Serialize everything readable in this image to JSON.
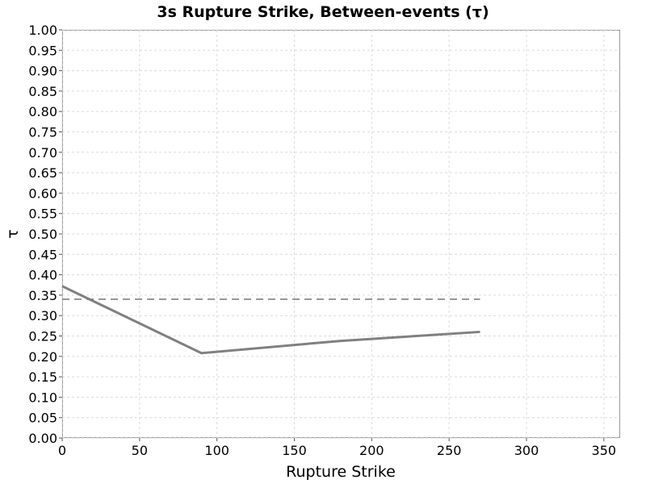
{
  "chart_data": {
    "type": "line",
    "title": "3s Rupture Strike, Between-events (τ)",
    "xlabel": "Rupture Strike",
    "ylabel": "τ",
    "xlim": [
      0,
      360
    ],
    "ylim": [
      0,
      1
    ],
    "x_ticks": [
      "0",
      "50",
      "100",
      "150",
      "200",
      "250",
      "300",
      "350"
    ],
    "x_tick_values": [
      0,
      50,
      100,
      150,
      200,
      250,
      300,
      350
    ],
    "y_ticks": [
      "0.00",
      "0.05",
      "0.10",
      "0.15",
      "0.20",
      "0.25",
      "0.30",
      "0.35",
      "0.40",
      "0.45",
      "0.50",
      "0.55",
      "0.60",
      "0.65",
      "0.70",
      "0.75",
      "0.80",
      "0.85",
      "0.90",
      "0.95",
      "1.00"
    ],
    "y_tick_values": [
      0,
      0.05,
      0.1,
      0.15,
      0.2,
      0.25,
      0.3,
      0.35,
      0.4,
      0.45,
      0.5,
      0.55,
      0.6,
      0.65,
      0.7,
      0.75,
      0.8,
      0.85,
      0.9,
      0.95,
      1.0
    ],
    "grid": true,
    "legend": "none",
    "series": [
      {
        "style": "solid",
        "color": "#808080",
        "x": [
          0,
          90,
          180,
          270
        ],
        "y": [
          0.372,
          0.208,
          0.238,
          0.26
        ]
      },
      {
        "style": "dashed",
        "color": "#808080",
        "x": [
          0,
          270
        ],
        "y": [
          0.34,
          0.34
        ]
      }
    ]
  }
}
